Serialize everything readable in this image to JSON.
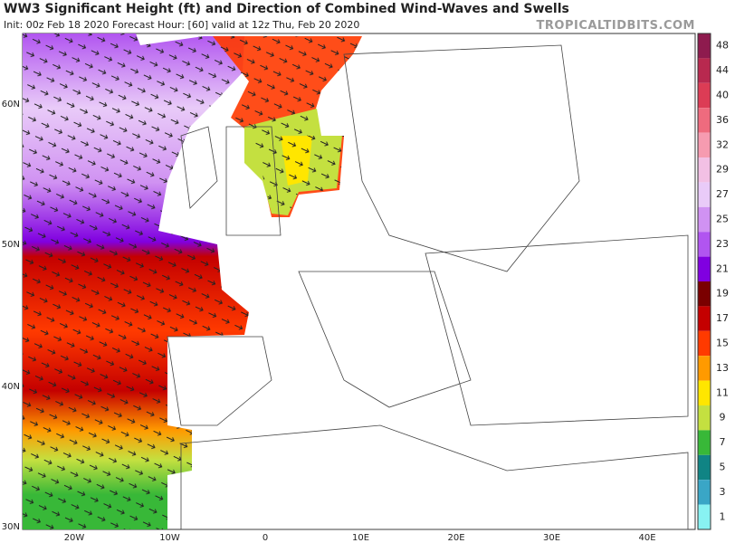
{
  "header": {
    "title": "WW3 Significant Height (ft) and Direction of Combined Wind-Waves and Swells",
    "subtitle": "Init: 00z Feb 18 2020   Forecast Hour: [60]   valid at 12z Thu, Feb 20 2020",
    "watermark": "TROPICALTIDBITS.COM"
  },
  "map": {
    "lat_labels": [
      "60N",
      "50N",
      "40N",
      "30N"
    ],
    "lon_labels": [
      "20W",
      "10W",
      "0",
      "10E",
      "20E",
      "30E",
      "40E"
    ]
  },
  "colorbar": [
    {
      "label": 48,
      "color": "#8e1b4e"
    },
    {
      "label": 44,
      "color": "#b8294f"
    },
    {
      "label": 40,
      "color": "#dc3c55"
    },
    {
      "label": 36,
      "color": "#ee6b7e"
    },
    {
      "label": 32,
      "color": "#f69bb0"
    },
    {
      "label": 29,
      "color": "#f2c0e4"
    },
    {
      "label": 27,
      "color": "#e9cbf8"
    },
    {
      "label": 25,
      "color": "#d092f2"
    },
    {
      "label": 23,
      "color": "#b155f0"
    },
    {
      "label": 21,
      "color": "#8000e0"
    },
    {
      "label": 19,
      "color": "#7a0000"
    },
    {
      "label": 17,
      "color": "#c40000"
    },
    {
      "label": 15,
      "color": "#ff3a00"
    },
    {
      "label": 13,
      "color": "#ff9a00"
    },
    {
      "label": 11,
      "color": "#ffe600"
    },
    {
      "label": 9,
      "color": "#c4e040"
    },
    {
      "label": 7,
      "color": "#38b838"
    },
    {
      "label": 5,
      "color": "#108484"
    },
    {
      "label": 3,
      "color": "#3aa6c6"
    },
    {
      "label": 1,
      "color": "#88f2f2"
    }
  ]
}
